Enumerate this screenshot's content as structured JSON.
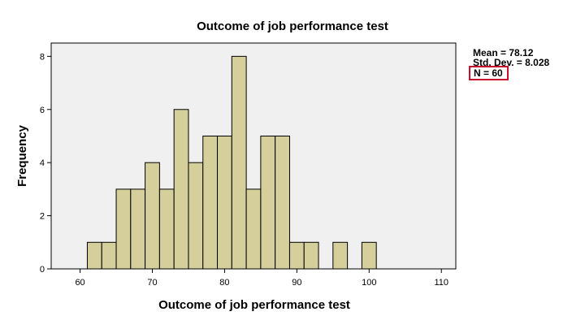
{
  "chart_data": {
    "type": "bar",
    "title": "Outcome of job performance test",
    "xlabel": "Outcome of job performance test",
    "ylabel": "Frequency",
    "bin_width": 2,
    "bins": [
      {
        "start": 61,
        "end": 63,
        "count": 1
      },
      {
        "start": 63,
        "end": 65,
        "count": 1
      },
      {
        "start": 65,
        "end": 67,
        "count": 3
      },
      {
        "start": 67,
        "end": 69,
        "count": 3
      },
      {
        "start": 69,
        "end": 71,
        "count": 4
      },
      {
        "start": 71,
        "end": 73,
        "count": 3
      },
      {
        "start": 73,
        "end": 75,
        "count": 6
      },
      {
        "start": 75,
        "end": 77,
        "count": 4
      },
      {
        "start": 77,
        "end": 79,
        "count": 5
      },
      {
        "start": 79,
        "end": 81,
        "count": 5
      },
      {
        "start": 81,
        "end": 83,
        "count": 8
      },
      {
        "start": 83,
        "end": 85,
        "count": 3
      },
      {
        "start": 85,
        "end": 87,
        "count": 5
      },
      {
        "start": 87,
        "end": 89,
        "count": 5
      },
      {
        "start": 89,
        "end": 91,
        "count": 1
      },
      {
        "start": 91,
        "end": 93,
        "count": 1
      },
      {
        "start": 95,
        "end": 97,
        "count": 1
      },
      {
        "start": 99,
        "end": 101,
        "count": 1
      }
    ],
    "xlim": [
      56,
      112
    ],
    "ylim": [
      0,
      8.5
    ],
    "x_ticks": [
      60,
      70,
      80,
      90,
      100,
      110
    ],
    "y_ticks": [
      0,
      2,
      4,
      6,
      8
    ],
    "grid": false,
    "bar_color": "#d5cf9b",
    "bar_edge_color": "#000000",
    "plot_background": "#f0f0f0",
    "stats": {
      "mean": "Mean = 78.12",
      "std_dev": "Std. Dev. = 8.028",
      "n": "N = 60"
    },
    "highlight_color": "#c8102e"
  }
}
